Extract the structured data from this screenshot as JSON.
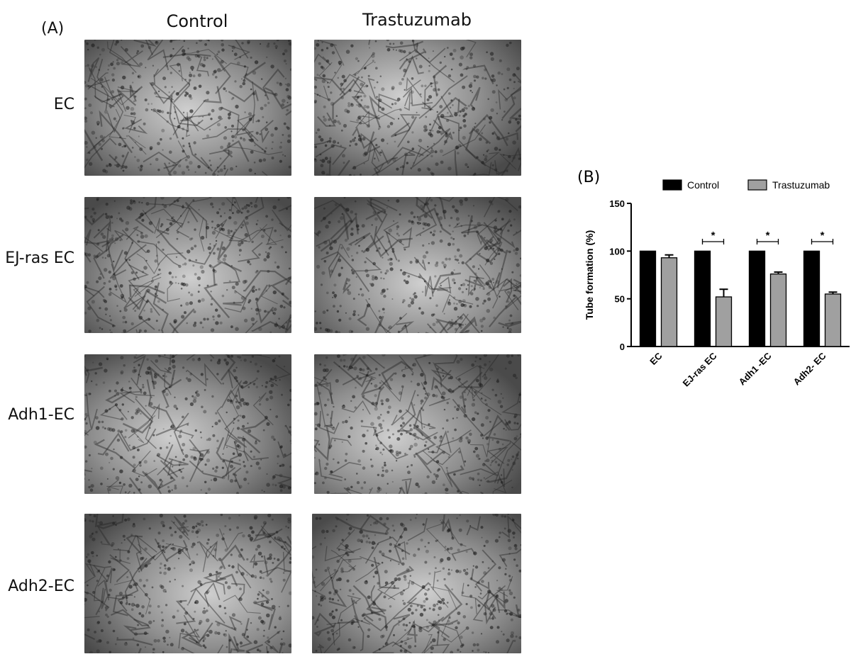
{
  "panel_a": {
    "label": "(A)",
    "columns": [
      "Control",
      "Trastuzumab"
    ],
    "rows": [
      "EC",
      "EJ-ras EC",
      "Adh1-EC",
      "Adh2-EC"
    ]
  },
  "chart_data": {
    "type": "bar",
    "panel_label": "(B)",
    "categories": [
      "EC",
      "EJ-ras EC",
      "Adh1 -EC",
      "Adh2- EC"
    ],
    "series": [
      {
        "name": "Control",
        "values": [
          100,
          100,
          100,
          100
        ],
        "errors": [
          0,
          0,
          0,
          0
        ],
        "color": "#000000"
      },
      {
        "name": "Trastuzumab",
        "values": [
          93,
          52,
          76,
          55
        ],
        "errors": [
          3,
          8,
          2,
          2
        ],
        "color": "#a0a0a0"
      }
    ],
    "significance": [
      "",
      "*",
      "*",
      "*"
    ],
    "ylabel": "Tube formation (%)",
    "xlabel": "",
    "ylim": [
      0,
      150
    ],
    "yticks": [
      0,
      50,
      100,
      150
    ],
    "legend": "top",
    "grid": false
  }
}
